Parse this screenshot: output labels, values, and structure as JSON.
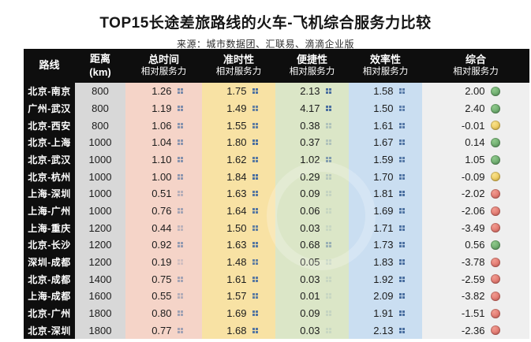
{
  "title": "TOP15长途差旅路线的火车-飞机综合服务力比较",
  "source": "来源：城市数据团、汇联易、滴滴企业版",
  "chart_data": {
    "type": "table",
    "title": "TOP15长途差旅路线的火车-飞机综合服务力比较",
    "source": "来源：城市数据团、汇联易、滴滴企业版",
    "columns": [
      {
        "key": "route",
        "label": "路线",
        "label2": ""
      },
      {
        "key": "distance",
        "label": "距离",
        "label2": "(km)"
      },
      {
        "key": "total_time",
        "label": "总时间",
        "label2": "相对服务力"
      },
      {
        "key": "punctuality",
        "label": "准时性",
        "label2": "相对服务力"
      },
      {
        "key": "convenience",
        "label": "便捷性",
        "label2": "相对服务力"
      },
      {
        "key": "efficiency",
        "label": "效率性",
        "label2": "相对服务力"
      },
      {
        "key": "overall",
        "label": "综合",
        "label2": "相对服务力"
      }
    ],
    "rows": [
      {
        "route": "北京-南京",
        "distance": "800",
        "total_time": "1.26",
        "punctuality": "1.75",
        "convenience": "2.13",
        "efficiency": "1.58",
        "overall": "2.00",
        "status": "green"
      },
      {
        "route": "广州-武汉",
        "distance": "800",
        "total_time": "1.19",
        "punctuality": "1.49",
        "convenience": "4.17",
        "efficiency": "1.50",
        "overall": "2.40",
        "status": "green"
      },
      {
        "route": "北京-西安",
        "distance": "800",
        "total_time": "1.06",
        "punctuality": "1.55",
        "convenience": "0.38",
        "efficiency": "1.61",
        "overall": "-0.01",
        "status": "yellow"
      },
      {
        "route": "北京-上海",
        "distance": "1000",
        "total_time": "1.04",
        "punctuality": "1.80",
        "convenience": "0.37",
        "efficiency": "1.67",
        "overall": "0.14",
        "status": "green"
      },
      {
        "route": "北京-武汉",
        "distance": "1000",
        "total_time": "1.10",
        "punctuality": "1.62",
        "convenience": "1.02",
        "efficiency": "1.59",
        "overall": "1.05",
        "status": "green"
      },
      {
        "route": "北京-杭州",
        "distance": "1000",
        "total_time": "1.00",
        "punctuality": "1.84",
        "convenience": "0.29",
        "efficiency": "1.70",
        "overall": "-0.09",
        "status": "yellow"
      },
      {
        "route": "上海-深圳",
        "distance": "1000",
        "total_time": "0.51",
        "punctuality": "1.63",
        "convenience": "0.09",
        "efficiency": "1.81",
        "overall": "-2.02",
        "status": "red"
      },
      {
        "route": "上海-广州",
        "distance": "1000",
        "total_time": "0.76",
        "punctuality": "1.64",
        "convenience": "0.06",
        "efficiency": "1.69",
        "overall": "-2.06",
        "status": "red"
      },
      {
        "route": "上海-重庆",
        "distance": "1200",
        "total_time": "0.44",
        "punctuality": "1.50",
        "convenience": "0.03",
        "efficiency": "1.71",
        "overall": "-3.49",
        "status": "red"
      },
      {
        "route": "北京-长沙",
        "distance": "1200",
        "total_time": "0.92",
        "punctuality": "1.63",
        "convenience": "0.68",
        "efficiency": "1.73",
        "overall": "0.56",
        "status": "green"
      },
      {
        "route": "深圳-成都",
        "distance": "1200",
        "total_time": "0.19",
        "punctuality": "1.48",
        "convenience": "0.05",
        "efficiency": "1.83",
        "overall": "-3.78",
        "status": "red"
      },
      {
        "route": "北京-成都",
        "distance": "1400",
        "total_time": "0.75",
        "punctuality": "1.61",
        "convenience": "0.03",
        "efficiency": "1.92",
        "overall": "-2.59",
        "status": "red"
      },
      {
        "route": "上海-成都",
        "distance": "1600",
        "total_time": "0.55",
        "punctuality": "1.57",
        "convenience": "0.01",
        "efficiency": "2.09",
        "overall": "-3.82",
        "status": "red"
      },
      {
        "route": "北京-广州",
        "distance": "1800",
        "total_time": "0.80",
        "punctuality": "1.69",
        "convenience": "0.09",
        "efficiency": "1.91",
        "overall": "-1.51",
        "status": "red"
      },
      {
        "route": "北京-深圳",
        "distance": "1800",
        "total_time": "0.77",
        "punctuality": "1.68",
        "convenience": "0.03",
        "efficiency": "2.13",
        "overall": "-2.36",
        "status": "red"
      }
    ]
  },
  "colors": {
    "header_bg": "#0e0e0e",
    "icon_blue": "#4a6fa0",
    "status": {
      "green": {
        "light": "#8fc98b",
        "dark": "#55975a"
      },
      "yellow": {
        "light": "#f9e28c",
        "dark": "#e2b83c"
      },
      "red": {
        "light": "#f09b90",
        "dark": "#d85f58"
      }
    },
    "bands": {
      "route": "#0e0e0e",
      "distance": "#d8d8d8",
      "total_time": "#f5d4c8",
      "punctuality": "#f8e2a4",
      "convenience": "#dbe6c7",
      "efficiency": "#cadef1",
      "overall": "#efefef"
    }
  }
}
